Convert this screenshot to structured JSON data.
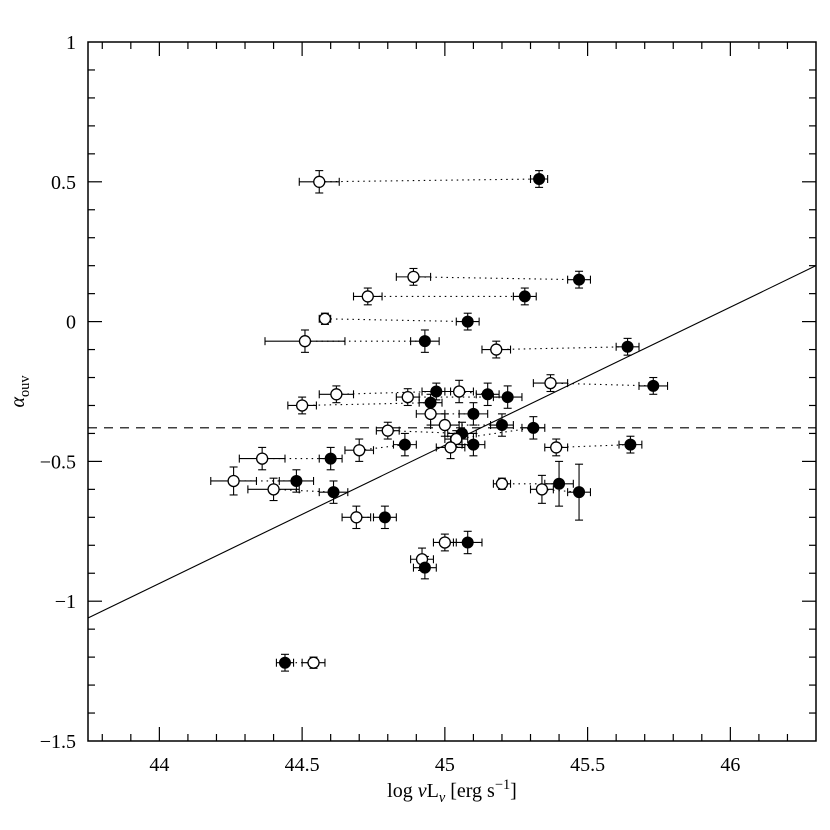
{
  "colors": {
    "foreground": "#000000",
    "background": "#ffffff"
  },
  "chart_data": {
    "type": "scatter",
    "title": "",
    "xlabel": "log nu L_nu [erg s^-1]",
    "ylabel": "alpha_ouv",
    "xlabel_parts": [
      {
        "t": "log ",
        "s": "n"
      },
      {
        "t": "ν",
        "s": "i"
      },
      {
        "t": "L",
        "s": "n"
      },
      {
        "t": "ν",
        "s": "subi"
      },
      {
        "t": " [erg s",
        "s": "n"
      },
      {
        "t": "−1",
        "s": "sup"
      },
      {
        "t": "]",
        "s": "n"
      }
    ],
    "ylabel_parts": [
      {
        "t": "α",
        "s": "i"
      },
      {
        "t": "ouv",
        "s": "sub"
      }
    ],
    "xlim": [
      43.75,
      46.3
    ],
    "ylim": [
      -1.5,
      1
    ],
    "xticks": [
      44,
      44.5,
      45,
      45.5,
      46
    ],
    "xtick_labels": [
      "44",
      "44.5",
      "45",
      "45.5",
      "46"
    ],
    "yticks": [
      1,
      0.5,
      0,
      -0.5,
      -1,
      -1.5
    ],
    "ytick_labels": [
      "1",
      "0.5",
      "0",
      "−0.5",
      "−1",
      "−1.5"
    ],
    "minor_tick_step": 0.1,
    "grid": false,
    "legend": "none",
    "dashed_hline_y": -0.38,
    "fit_line": {
      "x1": 43.75,
      "y1": -1.06,
      "x2": 46.3,
      "y2": 0.2
    },
    "marker_legend": {
      "open": "open-circle-series",
      "filled": "filled-circle-series",
      "connector": "dotted-pair-connector"
    },
    "pairs": [
      {
        "open": [
          44.56,
          0.5,
          0.07,
          0.04
        ],
        "filled": [
          45.33,
          0.51,
          0.03,
          0.03
        ]
      },
      {
        "open": [
          44.89,
          0.16,
          0.06,
          0.03
        ],
        "filled": [
          45.47,
          0.15,
          0.04,
          0.03
        ]
      },
      {
        "open": [
          44.73,
          0.09,
          0.05,
          0.03
        ],
        "filled": [
          45.28,
          0.09,
          0.04,
          0.03
        ]
      },
      {
        "open": [
          44.58,
          0.01,
          0.02,
          0.02
        ],
        "filled": [
          45.08,
          0.0,
          0.04,
          0.03
        ]
      },
      {
        "open": [
          44.51,
          -0.07,
          0.14,
          0.04
        ],
        "filled": [
          44.93,
          -0.07,
          0.05,
          0.04
        ]
      },
      {
        "open": [
          45.18,
          -0.1,
          0.05,
          0.03
        ],
        "filled": [
          45.64,
          -0.09,
          0.04,
          0.03
        ]
      },
      {
        "open": [
          45.37,
          -0.22,
          0.06,
          0.03
        ],
        "filled": [
          45.73,
          -0.23,
          0.05,
          0.03
        ]
      },
      {
        "open": [
          44.62,
          -0.26,
          0.06,
          0.03
        ],
        "filled": [
          44.97,
          -0.25,
          0.05,
          0.03
        ]
      },
      {
        "open": [
          44.87,
          -0.27,
          0.04,
          0.03
        ],
        "filled": [
          45.22,
          -0.27,
          0.05,
          0.04
        ]
      },
      {
        "open": [
          44.5,
          -0.3,
          0.05,
          0.03
        ],
        "filled": [
          44.95,
          -0.29,
          0.04,
          0.03
        ]
      },
      {
        "open": [
          45.05,
          -0.25,
          0.05,
          0.04
        ],
        "filled": [
          45.15,
          -0.26,
          0.04,
          0.04
        ]
      },
      {
        "open": [
          44.95,
          -0.33,
          0.05,
          0.04
        ],
        "filled": [
          45.1,
          -0.33,
          0.05,
          0.04
        ]
      },
      {
        "open": [
          44.8,
          -0.39,
          0.04,
          0.03
        ],
        "filled": [
          45.06,
          -0.4,
          0.05,
          0.04
        ]
      },
      {
        "open": [
          45.0,
          -0.37,
          0.05,
          0.04
        ],
        "filled": [
          45.2,
          -0.37,
          0.04,
          0.04
        ]
      },
      {
        "open": [
          45.04,
          -0.42,
          0.04,
          0.03
        ],
        "filled": [
          45.31,
          -0.38,
          0.04,
          0.04
        ]
      },
      {
        "open": [
          45.02,
          -0.45,
          0.05,
          0.04
        ],
        "filled": [
          45.1,
          -0.44,
          0.04,
          0.04
        ]
      },
      {
        "open": [
          45.39,
          -0.45,
          0.04,
          0.03
        ],
        "filled": [
          45.65,
          -0.44,
          0.04,
          0.03
        ]
      },
      {
        "open": [
          44.7,
          -0.46,
          0.05,
          0.04
        ],
        "filled": [
          44.86,
          -0.44,
          0.04,
          0.04
        ]
      },
      {
        "open": [
          44.36,
          -0.49,
          0.08,
          0.04
        ],
        "filled": [
          44.6,
          -0.49,
          0.04,
          0.04
        ]
      },
      {
        "open": [
          44.26,
          -0.57,
          0.08,
          0.05
        ],
        "filled": [
          44.48,
          -0.57,
          0.06,
          0.04
        ]
      },
      {
        "open": [
          45.2,
          -0.58,
          0.03,
          0.02
        ],
        "filled": [
          45.4,
          -0.58,
          0.05,
          0.08
        ]
      },
      {
        "open": [
          44.4,
          -0.6,
          0.09,
          0.04
        ],
        "filled": [
          44.61,
          -0.61,
          0.05,
          0.04
        ]
      },
      {
        "open": [
          45.34,
          -0.6,
          0.04,
          0.05
        ],
        "filled": [
          45.47,
          -0.61,
          0.04,
          0.1
        ]
      },
      {
        "open": [
          44.69,
          -0.7,
          0.05,
          0.04
        ],
        "filled": [
          44.79,
          -0.7,
          0.04,
          0.04
        ]
      },
      {
        "open": [
          45.0,
          -0.79,
          0.04,
          0.03
        ],
        "filled": [
          45.08,
          -0.79,
          0.05,
          0.04
        ]
      },
      {
        "open": [
          44.92,
          -0.85,
          0.04,
          0.04
        ],
        "filled": [
          44.93,
          -0.88,
          0.04,
          0.04
        ]
      },
      {
        "open": [
          44.54,
          -1.22,
          0.04,
          0.02
        ],
        "filled": [
          44.44,
          -1.22,
          0.03,
          0.03
        ]
      }
    ]
  }
}
